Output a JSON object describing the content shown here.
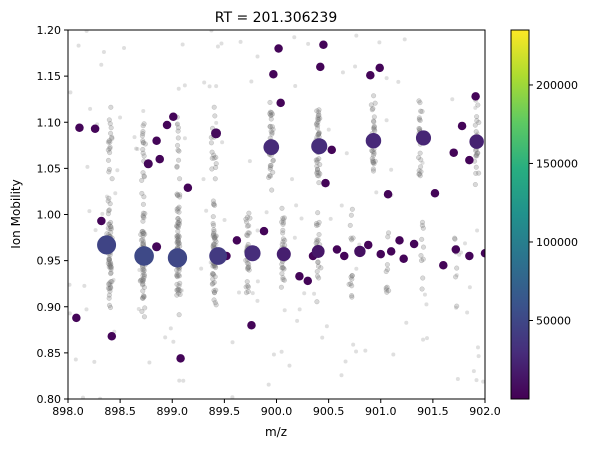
{
  "chart_data": {
    "type": "scatter",
    "title": "RT = 201.306239",
    "xlabel": "m/z",
    "ylabel": "Ion Mobility",
    "xlim": [
      898.0,
      902.0
    ],
    "ylim": [
      0.8,
      1.2
    ],
    "xticks": [
      "898.0",
      "898.5",
      "899.0",
      "899.5",
      "900.0",
      "900.5",
      "901.0",
      "901.5",
      "902.0"
    ],
    "yticks": [
      "0.80",
      "0.85",
      "0.90",
      "0.95",
      "1.00",
      "1.05",
      "1.10",
      "1.15",
      "1.20"
    ],
    "grid": false,
    "colorbar": {
      "colormap": "viridis",
      "range": [
        0,
        235000
      ],
      "ticks": [
        "50000",
        "100000",
        "150000",
        "200000"
      ],
      "tick_values": [
        50000,
        100000,
        150000,
        200000
      ]
    },
    "background_series": {
      "color": "#808080",
      "description_columns": [
        "mz_center",
        "mobility_center",
        "count"
      ],
      "clusters": [
        [
          898.4,
          0.955,
          70
        ],
        [
          898.72,
          0.955,
          75
        ],
        [
          899.06,
          0.955,
          80
        ],
        [
          899.4,
          0.955,
          60
        ],
        [
          899.72,
          0.955,
          35
        ],
        [
          900.06,
          0.955,
          35
        ],
        [
          900.4,
          0.955,
          25
        ],
        [
          900.72,
          0.955,
          15
        ],
        [
          901.06,
          0.955,
          10
        ],
        [
          901.4,
          0.955,
          10
        ],
        [
          901.72,
          0.955,
          8
        ],
        [
          898.4,
          1.065,
          20
        ],
        [
          898.72,
          1.065,
          18
        ],
        [
          899.06,
          1.065,
          15
        ],
        [
          899.4,
          1.08,
          15
        ],
        [
          899.95,
          1.075,
          45
        ],
        [
          900.4,
          1.075,
          45
        ],
        [
          900.93,
          1.078,
          30
        ],
        [
          901.38,
          1.08,
          28
        ],
        [
          901.92,
          1.08,
          25
        ]
      ]
    },
    "points": {
      "columns": [
        "mz",
        "mobility",
        "intensity"
      ],
      "values": [
        [
          898.37,
          0.967,
          48000
        ],
        [
          898.73,
          0.955,
          52000
        ],
        [
          899.05,
          0.953,
          50000
        ],
        [
          899.44,
          0.955,
          40000
        ],
        [
          899.77,
          0.958,
          30000
        ],
        [
          900.07,
          0.957,
          20000
        ],
        [
          900.4,
          0.96,
          15000
        ],
        [
          900.8,
          0.96,
          10000
        ],
        [
          899.95,
          1.073,
          28000
        ],
        [
          900.41,
          1.074,
          30000
        ],
        [
          900.93,
          1.08,
          27000
        ],
        [
          901.41,
          1.083,
          25000
        ],
        [
          901.92,
          1.079,
          22000
        ],
        [
          898.26,
          1.093,
          3000
        ],
        [
          898.11,
          1.094,
          3000
        ],
        [
          898.77,
          1.055,
          4000
        ],
        [
          898.88,
          1.06,
          3000
        ],
        [
          898.85,
          1.08,
          3000
        ],
        [
          898.95,
          1.097,
          3000
        ],
        [
          899.01,
          1.106,
          3000
        ],
        [
          899.15,
          1.029,
          3000
        ],
        [
          899.42,
          1.088,
          6000
        ],
        [
          899.97,
          1.152,
          3000
        ],
        [
          900.02,
          1.18,
          3000
        ],
        [
          900.04,
          1.121,
          3000
        ],
        [
          900.42,
          1.16,
          3000
        ],
        [
          900.45,
          1.184,
          3000
        ],
        [
          900.53,
          1.07,
          3000
        ],
        [
          900.47,
          1.034,
          3000
        ],
        [
          900.9,
          1.151,
          3000
        ],
        [
          900.99,
          1.159,
          3000
        ],
        [
          901.07,
          1.022,
          3000
        ],
        [
          901.52,
          1.023,
          3000
        ],
        [
          901.78,
          1.096,
          3000
        ],
        [
          901.91,
          1.128,
          3000
        ],
        [
          901.7,
          1.067,
          3000
        ],
        [
          901.85,
          1.059,
          3000
        ],
        [
          898.08,
          0.888,
          3000
        ],
        [
          898.32,
          0.993,
          3000
        ],
        [
          898.42,
          0.868,
          3000
        ],
        [
          898.85,
          0.965,
          4000
        ],
        [
          899.08,
          0.844,
          3000
        ],
        [
          899.52,
          0.955,
          3000
        ],
        [
          899.62,
          0.972,
          3000
        ],
        [
          899.76,
          0.88,
          3000
        ],
        [
          900.22,
          0.933,
          3000
        ],
        [
          900.35,
          0.955,
          3000
        ],
        [
          900.58,
          0.962,
          3000
        ],
        [
          900.88,
          0.967,
          3000
        ],
        [
          901.1,
          0.96,
          3000
        ],
        [
          901.22,
          0.952,
          3000
        ],
        [
          901.32,
          0.968,
          3000
        ],
        [
          901.6,
          0.945,
          3000
        ],
        [
          901.72,
          0.962,
          3000
        ],
        [
          901.85,
          0.955,
          3000
        ],
        [
          902.0,
          0.958,
          3000
        ],
        [
          899.88,
          0.982,
          3000
        ],
        [
          900.3,
          0.928,
          3000
        ],
        [
          900.65,
          0.955,
          3000
        ],
        [
          901.0,
          0.957,
          3000
        ],
        [
          901.18,
          0.972,
          3000
        ]
      ]
    }
  }
}
